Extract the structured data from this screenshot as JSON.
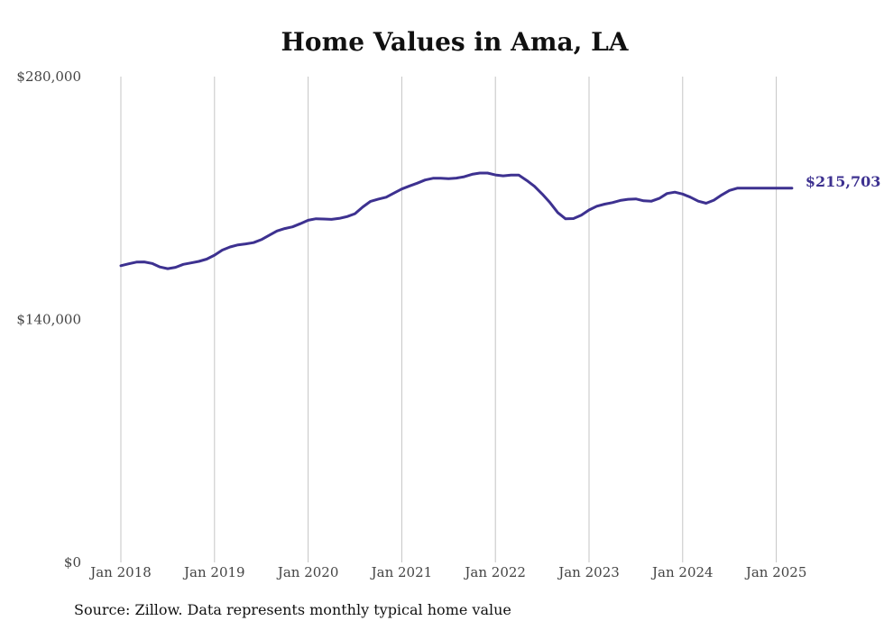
{
  "chart_data": {
    "type": "line",
    "title": "Home Values in Ama, LA",
    "ylim": [
      0,
      280000
    ],
    "y_ticks": [
      "$280,000",
      "$140,000",
      "$0"
    ],
    "x_ticks": [
      "Jan 2018",
      "Jan 2019",
      "Jan 2020",
      "Jan 2021",
      "Jan 2022",
      "Jan 2023",
      "Jan 2024",
      "Jan 2025"
    ],
    "grid": "vertical at year ticks",
    "line_color": "#3d3190",
    "end_label": "$215,703",
    "series": [
      {
        "x": [
          "2018-01",
          "2018-02",
          "2018-03",
          "2018-04",
          "2018-05",
          "2018-06",
          "2018-07",
          "2018-08",
          "2018-09",
          "2018-10",
          "2018-11",
          "2018-12",
          "2019-01",
          "2019-02",
          "2019-03",
          "2019-04",
          "2019-05",
          "2019-06",
          "2019-07",
          "2019-08",
          "2019-09",
          "2019-10",
          "2019-11",
          "2019-12",
          "2020-01",
          "2020-02",
          "2020-03",
          "2020-04",
          "2020-05",
          "2020-06",
          "2020-07",
          "2020-08",
          "2020-09",
          "2020-10",
          "2020-11",
          "2020-12",
          "2021-01",
          "2021-02",
          "2021-03",
          "2021-04",
          "2021-05",
          "2021-06",
          "2021-07",
          "2021-08",
          "2021-09",
          "2021-10",
          "2021-11",
          "2021-12",
          "2022-01",
          "2022-02",
          "2022-03",
          "2022-04",
          "2022-05",
          "2022-06",
          "2022-07",
          "2022-08",
          "2022-09",
          "2022-10",
          "2022-11",
          "2022-12",
          "2023-01",
          "2023-02",
          "2023-03",
          "2023-04",
          "2023-05",
          "2023-06",
          "2023-07",
          "2023-08",
          "2023-09",
          "2023-10",
          "2023-11",
          "2023-12",
          "2024-01",
          "2024-02",
          "2024-03",
          "2024-04",
          "2024-05",
          "2024-06",
          "2024-07",
          "2024-08",
          "2024-09",
          "2024-10",
          "2024-11",
          "2024-12",
          "2025-01",
          "2025-02",
          "2025-03"
        ],
        "values": [
          171000,
          172100,
          173100,
          173200,
          172300,
          170300,
          169300,
          170100,
          171800,
          172600,
          173500,
          174800,
          177100,
          180000,
          181800,
          183000,
          183600,
          184300,
          186000,
          188500,
          191000,
          192400,
          193400,
          195200,
          197200,
          198100,
          197900,
          197700,
          198300,
          199300,
          201000,
          204900,
          208100,
          209400,
          210500,
          212900,
          215200,
          217000,
          218600,
          220400,
          221400,
          221400,
          221200,
          221500,
          222300,
          223700,
          224400,
          224400,
          223300,
          222800,
          223200,
          223200,
          220200,
          216800,
          212300,
          207300,
          201600,
          198000,
          198200,
          200100,
          203100,
          205300,
          206500,
          207400,
          208600,
          209300,
          209500,
          208400,
          208200,
          209800,
          212600,
          213400,
          212300,
          210500,
          208200,
          207000,
          208800,
          211800,
          214400,
          215703,
          215703,
          215703,
          215703,
          215703,
          215703,
          215703,
          215703
        ]
      }
    ],
    "source": "Source: Zillow. Data represents monthly typical home value"
  }
}
